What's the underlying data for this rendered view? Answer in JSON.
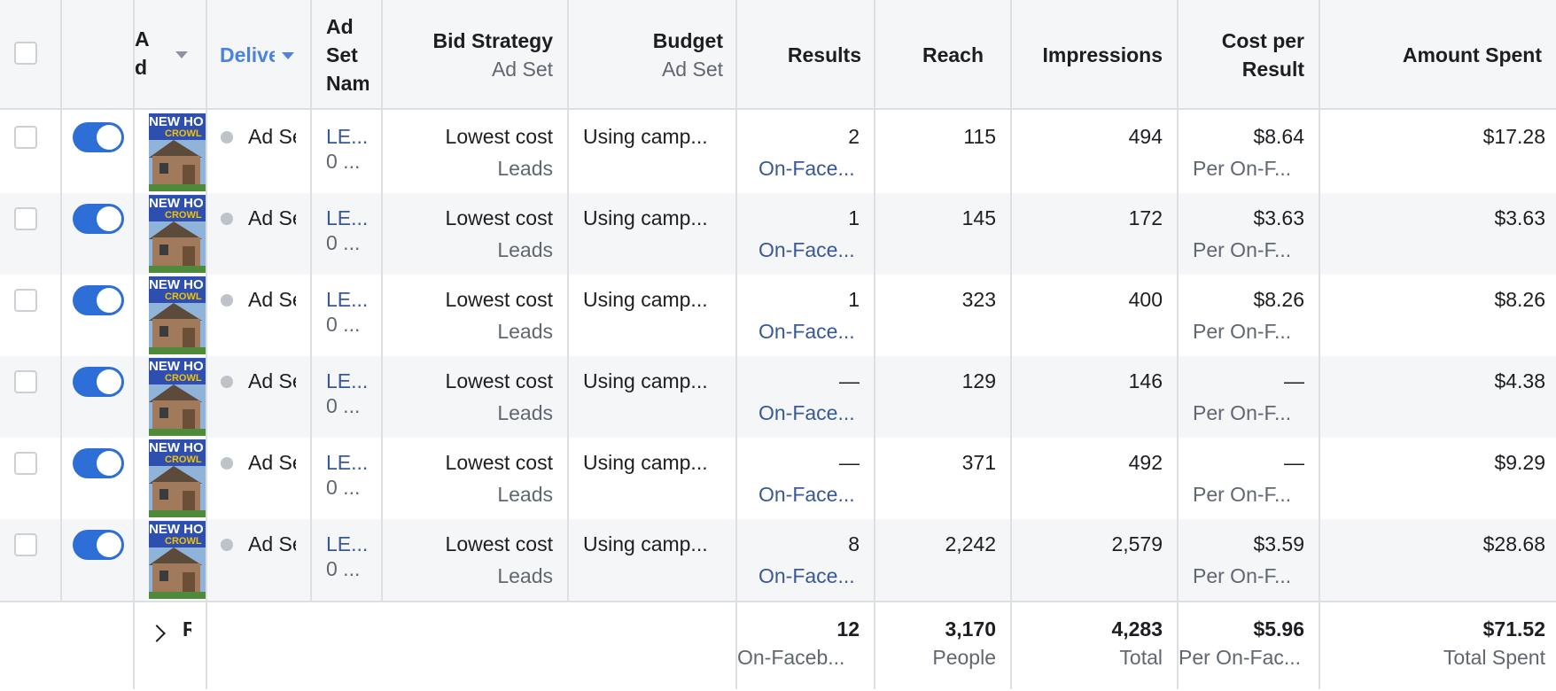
{
  "header": {
    "ad_name": "Ad Name",
    "delivery": "Delivery",
    "ad_set_name": "Ad Set Name",
    "bid_strategy": "Bid Strategy",
    "bid_strategy_sub": "Ad Set",
    "budget": "Budget",
    "budget_sub": "Ad Set",
    "results": "Results",
    "reach": "Reach",
    "impressions": "Impressions",
    "cost_per_result": "Cost per Result",
    "amount_spent": "Amount Spent"
  },
  "colors": {
    "accent": "#2d6fd6",
    "link": "#385898",
    "header_bg": "#f5f6f7",
    "muted_text": "#606770"
  },
  "rows": [
    {
      "delivery": "Ad Set Inactive",
      "ad_set_name": "LE...",
      "ad_set_sub": "0 ...",
      "bid": "Lowest cost",
      "bid_sub": "Leads",
      "budget": "Using camp...",
      "results": "2",
      "results_sub": "On-Face...",
      "reach": "115",
      "impressions": "494",
      "cpr": "$8.64",
      "cpr_sub": "Per On-F...",
      "spent": "$17.28"
    },
    {
      "delivery": "Ad Set Inactive",
      "ad_set_name": "LE...",
      "ad_set_sub": "0 ...",
      "bid": "Lowest cost",
      "bid_sub": "Leads",
      "budget": "Using camp...",
      "results": "1",
      "results_sub": "On-Face...",
      "reach": "145",
      "impressions": "172",
      "cpr": "$3.63",
      "cpr_sub": "Per On-F...",
      "spent": "$3.63"
    },
    {
      "delivery": "Ad Set Inactive",
      "ad_set_name": "LE...",
      "ad_set_sub": "0 ...",
      "bid": "Lowest cost",
      "bid_sub": "Leads",
      "budget": "Using camp...",
      "results": "1",
      "results_sub": "On-Face...",
      "reach": "323",
      "impressions": "400",
      "cpr": "$8.26",
      "cpr_sub": "Per On-F...",
      "spent": "$8.26"
    },
    {
      "delivery": "Ad Set Inactive",
      "ad_set_name": "LE...",
      "ad_set_sub": "0 ...",
      "bid": "Lowest cost",
      "bid_sub": "Leads",
      "budget": "Using camp...",
      "results": "—",
      "results_sub": "On-Face...",
      "reach": "129",
      "impressions": "146",
      "cpr": "—",
      "cpr_sub": "Per On-F...",
      "spent": "$4.38"
    },
    {
      "delivery": "Ad Set Inactive",
      "ad_set_name": "LE...",
      "ad_set_sub": "0 ...",
      "bid": "Lowest cost",
      "bid_sub": "Leads",
      "budget": "Using camp...",
      "results": "—",
      "results_sub": "On-Face...",
      "reach": "371",
      "impressions": "492",
      "cpr": "—",
      "cpr_sub": "Per On-F...",
      "spent": "$9.29"
    },
    {
      "delivery": "Ad Set Inactive",
      "ad_set_name": "LE...",
      "ad_set_sub": "0 ...",
      "bid": "Lowest cost",
      "bid_sub": "Leads",
      "budget": "Using camp...",
      "results": "8",
      "results_sub": "On-Face...",
      "reach": "2,242",
      "impressions": "2,579",
      "cpr": "$3.59",
      "cpr_sub": "Per On-F...",
      "spent": "$28.68"
    }
  ],
  "thumbnail": {
    "line1": "NEW HO",
    "line2": "CROWL"
  },
  "footer": {
    "expand_label": "Results",
    "results": "12",
    "results_sub": "On-Faceb...",
    "reach": "3,170",
    "reach_sub": "People",
    "impressions": "4,283",
    "impressions_sub": "Total",
    "cpr": "$5.96",
    "cpr_sub": "Per On-Fac...",
    "spent": "$71.52",
    "spent_sub": "Total Spent"
  }
}
